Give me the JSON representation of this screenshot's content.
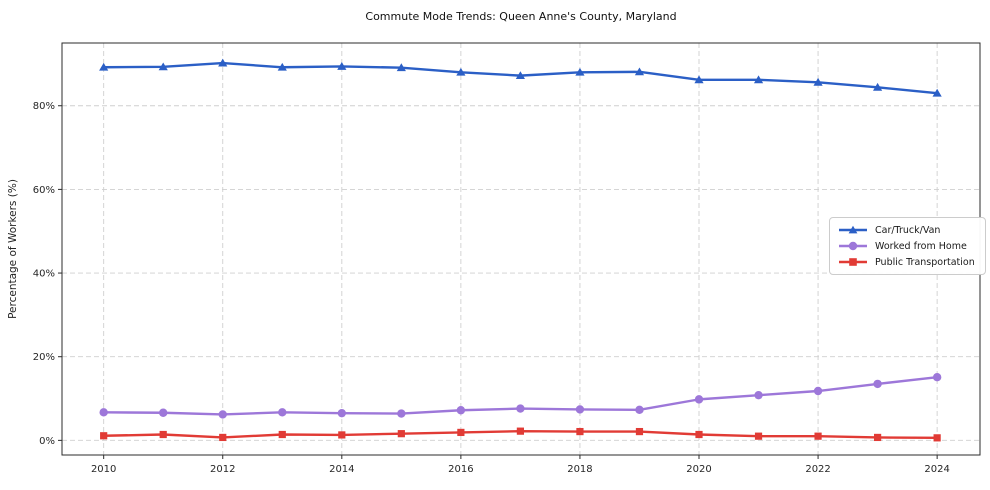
{
  "chart_data": {
    "type": "line",
    "title": "Commute Mode Trends: Queen Anne's County, Maryland",
    "xlabel": "",
    "ylabel": "Percentage of Workers (%)",
    "x": [
      2010,
      2011,
      2012,
      2013,
      2014,
      2015,
      2016,
      2017,
      2018,
      2019,
      2020,
      2021,
      2022,
      2023,
      2024
    ],
    "series": [
      {
        "name": "Car/Truck/Van",
        "color": "#2b5fc6",
        "marker": "triangle",
        "values": [
          89.2,
          89.3,
          90.2,
          89.2,
          89.4,
          89.1,
          88.0,
          87.2,
          88.0,
          88.1,
          86.2,
          86.2,
          85.6,
          84.4,
          83.0
        ]
      },
      {
        "name": "Worked from Home",
        "color": "#9d77d9",
        "marker": "circle",
        "values": [
          6.7,
          6.6,
          6.2,
          6.7,
          6.5,
          6.4,
          7.2,
          7.6,
          7.4,
          7.3,
          9.8,
          10.8,
          11.8,
          13.5,
          15.1
        ]
      },
      {
        "name": "Public Transportation",
        "color": "#e13b35",
        "marker": "square",
        "values": [
          1.1,
          1.4,
          0.7,
          1.4,
          1.3,
          1.6,
          1.9,
          2.2,
          2.1,
          2.1,
          1.4,
          1.0,
          1.0,
          0.7,
          0.6
        ]
      }
    ],
    "x_ticks": [
      2010,
      2012,
      2014,
      2016,
      2018,
      2020,
      2022,
      2024
    ],
    "y_ticks": [
      0,
      20,
      40,
      60,
      80
    ],
    "y_tick_suffix": "%",
    "xlim": [
      2009.3,
      2024.72
    ],
    "ylim": [
      -3.5,
      95.0
    ],
    "grid": true,
    "legend_position": "middle-right"
  }
}
